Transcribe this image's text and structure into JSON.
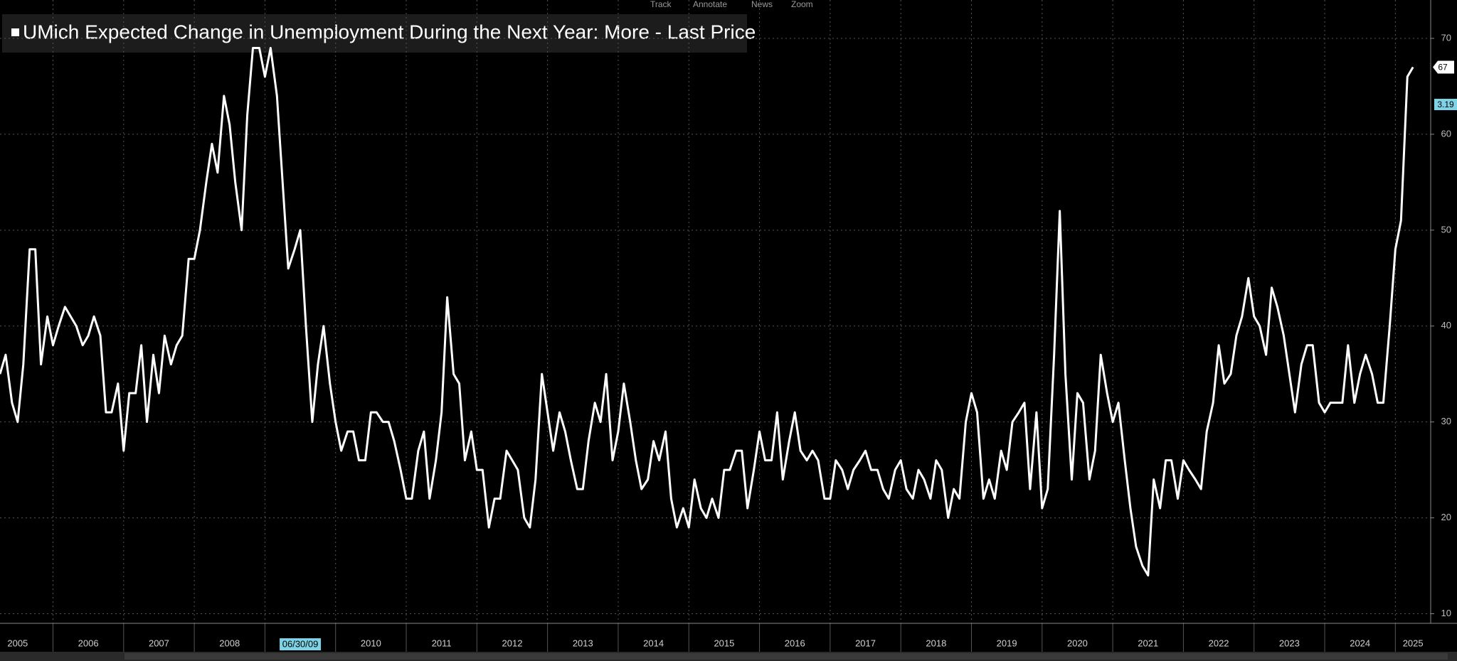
{
  "toolbar": [
    "Track",
    "Annotate",
    "News",
    "Zoom"
  ],
  "chart_data": {
    "type": "line",
    "x": [
      2005.25,
      2005.33,
      2005.42,
      2005.5,
      2005.58,
      2005.67,
      2005.75,
      2005.83,
      2005.92,
      2006,
      2006.08,
      2006.17,
      2006.25,
      2006.33,
      2006.42,
      2006.5,
      2006.58,
      2006.67,
      2006.75,
      2006.83,
      2006.92,
      2007,
      2007.08,
      2007.17,
      2007.25,
      2007.33,
      2007.42,
      2007.5,
      2007.58,
      2007.67,
      2007.75,
      2007.83,
      2007.92,
      2008,
      2008.08,
      2008.17,
      2008.25,
      2008.33,
      2008.42,
      2008.5,
      2008.58,
      2008.67,
      2008.75,
      2008.83,
      2008.92,
      2009,
      2009.08,
      2009.17,
      2009.25,
      2009.33,
      2009.42,
      2009.5,
      2009.58,
      2009.67,
      2009.75,
      2009.83,
      2009.92,
      2010,
      2010.08,
      2010.17,
      2010.25,
      2010.33,
      2010.42,
      2010.5,
      2010.58,
      2010.67,
      2010.75,
      2010.83,
      2010.92,
      2011,
      2011.08,
      2011.17,
      2011.25,
      2011.33,
      2011.42,
      2011.5,
      2011.58,
      2011.67,
      2011.75,
      2011.83,
      2011.92,
      2012,
      2012.08,
      2012.17,
      2012.25,
      2012.33,
      2012.42,
      2012.5,
      2012.58,
      2012.67,
      2012.75,
      2012.83,
      2012.92,
      2013,
      2013.08,
      2013.17,
      2013.25,
      2013.33,
      2013.42,
      2013.5,
      2013.58,
      2013.67,
      2013.75,
      2013.83,
      2013.92,
      2014,
      2014.08,
      2014.17,
      2014.25,
      2014.33,
      2014.42,
      2014.5,
      2014.58,
      2014.67,
      2014.75,
      2014.83,
      2014.92,
      2015,
      2015.08,
      2015.17,
      2015.25,
      2015.33,
      2015.42,
      2015.5,
      2015.58,
      2015.67,
      2015.75,
      2015.83,
      2015.92,
      2016,
      2016.08,
      2016.17,
      2016.25,
      2016.33,
      2016.42,
      2016.5,
      2016.58,
      2016.67,
      2016.75,
      2016.83,
      2016.92,
      2017,
      2017.08,
      2017.17,
      2017.25,
      2017.33,
      2017.42,
      2017.5,
      2017.58,
      2017.67,
      2017.75,
      2017.83,
      2017.92,
      2018,
      2018.08,
      2018.17,
      2018.25,
      2018.33,
      2018.42,
      2018.5,
      2018.58,
      2018.67,
      2018.75,
      2018.83,
      2018.92,
      2019,
      2019.08,
      2019.17,
      2019.25,
      2019.33,
      2019.42,
      2019.5,
      2019.58,
      2019.67,
      2019.75,
      2019.83,
      2019.92,
      2020,
      2020.08,
      2020.17,
      2020.25,
      2020.33,
      2020.42,
      2020.5,
      2020.58,
      2020.67,
      2020.75,
      2020.83,
      2020.92,
      2021,
      2021.08,
      2021.17,
      2021.25,
      2021.33,
      2021.42,
      2021.5,
      2021.58,
      2021.67,
      2021.75,
      2021.83,
      2021.92,
      2022,
      2022.08,
      2022.17,
      2022.25,
      2022.33,
      2022.42,
      2022.5,
      2022.58,
      2022.67,
      2022.75,
      2022.83,
      2022.92,
      2023,
      2023.08,
      2023.17,
      2023.25,
      2023.33,
      2023.42,
      2023.5,
      2023.58,
      2023.67,
      2023.75,
      2023.83,
      2023.92,
      2024,
      2024.08,
      2024.17,
      2024.25,
      2024.33,
      2024.42,
      2024.5,
      2024.58,
      2024.67,
      2024.75,
      2024.83,
      2024.92,
      2025,
      2025.08,
      2025.17,
      2025.25
    ],
    "series": [
      {
        "name": "UMich Expected Change in Unemployment During the Next Year: More - Last Price",
        "color": "#ffffff",
        "values": [
          35,
          37,
          32,
          30,
          36,
          48,
          48,
          36,
          41,
          38,
          40,
          42,
          41,
          40,
          38,
          39,
          41,
          39,
          31,
          31,
          34,
          27,
          33,
          33,
          38,
          30,
          37,
          33,
          39,
          36,
          38,
          39,
          47,
          47,
          50,
          55,
          59,
          56,
          64,
          61,
          55,
          50,
          62,
          69,
          69,
          66,
          69,
          64,
          55,
          46,
          48,
          50,
          40,
          30,
          36,
          40,
          34,
          30,
          27,
          29,
          29,
          26,
          26,
          31,
          31,
          30,
          30,
          28,
          25,
          22,
          22,
          27,
          29,
          22,
          26,
          31,
          43,
          35,
          34,
          26,
          29,
          25,
          25,
          19,
          22,
          22,
          27,
          26,
          25,
          20,
          19,
          24,
          35,
          31,
          27,
          31,
          29,
          26,
          23,
          23,
          28,
          32,
          30,
          35,
          26,
          29,
          34,
          30,
          26,
          23,
          24,
          28,
          26,
          29,
          22,
          19,
          21,
          19,
          24,
          21,
          20,
          22,
          20,
          25,
          25,
          27,
          27,
          21,
          25,
          29,
          26,
          26,
          31,
          24,
          28,
          31,
          27,
          26,
          27,
          26,
          22,
          22,
          26,
          25,
          23,
          25,
          26,
          27,
          25,
          25,
          23,
          22,
          25,
          26,
          23,
          22,
          25,
          24,
          22,
          26,
          25,
          20,
          23,
          22,
          30,
          33,
          31,
          22,
          24,
          22,
          27,
          25,
          30,
          31,
          32,
          23,
          31,
          21,
          23,
          37,
          52,
          35,
          24,
          33,
          32,
          24,
          27,
          37,
          33,
          30,
          32,
          26,
          21,
          17,
          15,
          14,
          24,
          21,
          26,
          26,
          22,
          26,
          25,
          24,
          23,
          29,
          32,
          38,
          34,
          35,
          39,
          41,
          45,
          41,
          40,
          37,
          44,
          42,
          39,
          35,
          31,
          36,
          38,
          38,
          32,
          31,
          32,
          32,
          32,
          38,
          32,
          35,
          37,
          35,
          32,
          32,
          40,
          48,
          51,
          66,
          67
        ]
      }
    ],
    "xlim": [
      2005.25,
      2025.5
    ],
    "xticks": [
      {
        "value": 2005.5,
        "label": "2005"
      },
      {
        "value": 2006.5,
        "label": "2006"
      },
      {
        "value": 2007.5,
        "label": "2007"
      },
      {
        "value": 2008.5,
        "label": "2008"
      },
      {
        "value": 2010.5,
        "label": "2010"
      },
      {
        "value": 2011.5,
        "label": "2011"
      },
      {
        "value": 2012.5,
        "label": "2012"
      },
      {
        "value": 2013.5,
        "label": "2013"
      },
      {
        "value": 2014.5,
        "label": "2014"
      },
      {
        "value": 2015.5,
        "label": "2015"
      },
      {
        "value": 2016.5,
        "label": "2016"
      },
      {
        "value": 2017.5,
        "label": "2017"
      },
      {
        "value": 2018.5,
        "label": "2018"
      },
      {
        "value": 2019.5,
        "label": "2019"
      },
      {
        "value": 2020.5,
        "label": "2020"
      },
      {
        "value": 2021.5,
        "label": "2021"
      },
      {
        "value": 2022.5,
        "label": "2022"
      },
      {
        "value": 2023.5,
        "label": "2023"
      },
      {
        "value": 2024.5,
        "label": "2024"
      },
      {
        "value": 2025.25,
        "label": "2025"
      }
    ],
    "xgrid": [
      2006,
      2007,
      2008,
      2009,
      2010,
      2011,
      2012,
      2013,
      2014,
      2015,
      2016,
      2017,
      2018,
      2019,
      2020,
      2021,
      2022,
      2023,
      2024,
      2025
    ],
    "crosshair": {
      "value": 2009.5,
      "label": "06/30/09"
    },
    "annotations": [
      "3.19"
    ],
    "ylim": [
      9,
      74
    ],
    "yticks": [
      10,
      20,
      30,
      40,
      50,
      60,
      70
    ],
    "grid": true
  }
}
